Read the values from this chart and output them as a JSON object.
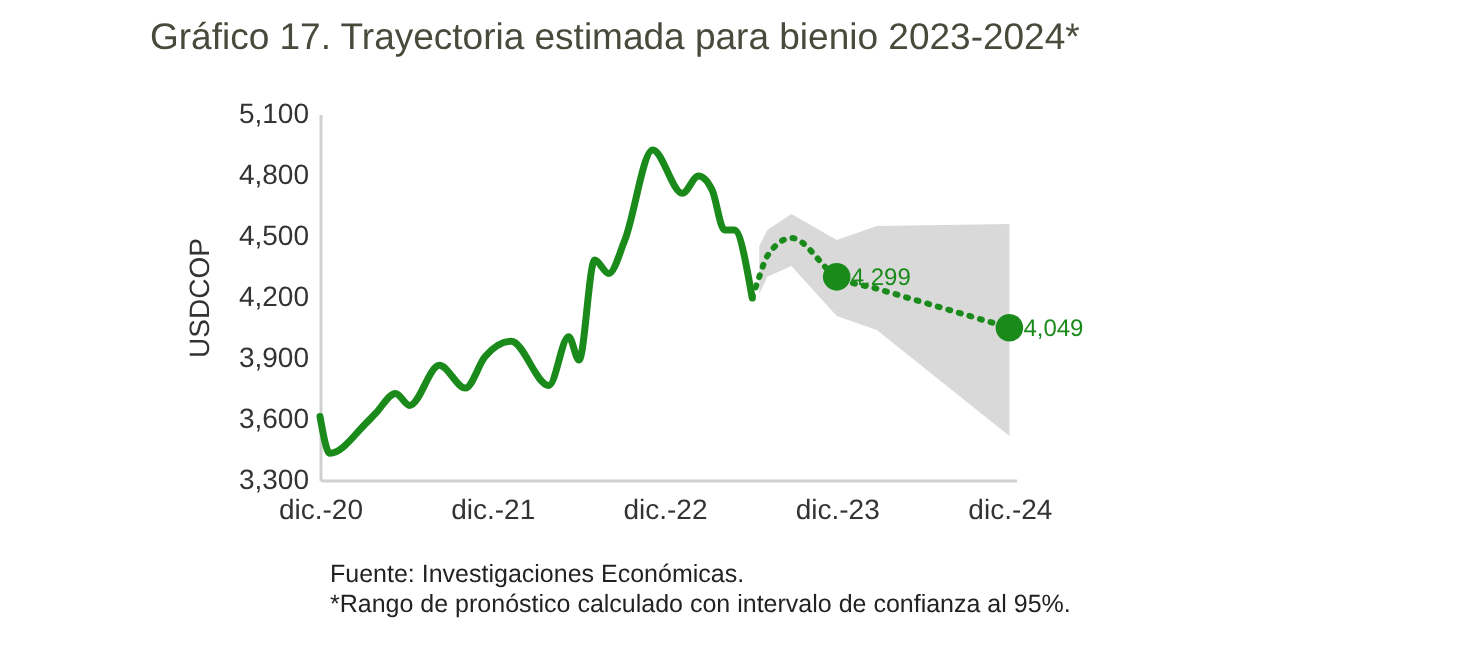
{
  "chart_data": {
    "type": "line",
    "title": "Gráfico 17. Trayectoria estimada para bienio 2023-2024*",
    "ylabel": "USDCOP",
    "xlim": [
      "2020-12-01",
      "2024-12-15"
    ],
    "xticks": [
      {
        "value": "2020-12-01",
        "label": "dic.-20"
      },
      {
        "value": "2021-12-01",
        "label": "dic.-21"
      },
      {
        "value": "2022-12-01",
        "label": "dic.-22"
      },
      {
        "value": "2023-12-01",
        "label": "dic.-23"
      },
      {
        "value": "2024-12-01",
        "label": "dic.-24"
      }
    ],
    "ylim": [
      3300,
      5100
    ],
    "yticks": [
      {
        "value": 3300,
        "label": "3,300"
      },
      {
        "value": 3600,
        "label": "3,600"
      },
      {
        "value": 3900,
        "label": "3,900"
      },
      {
        "value": 4200,
        "label": "4,200"
      },
      {
        "value": 4500,
        "label": "4,500"
      },
      {
        "value": 4800,
        "label": "4,800"
      },
      {
        "value": 5100,
        "label": "5,100"
      }
    ],
    "series": [
      {
        "type": "line",
        "color": "#1a8a1a",
        "line_style": "solid",
        "x": [
          "2020-12-01",
          "2020-12-22",
          "2021-03-08",
          "2021-03-29",
          "2021-05-10",
          "2021-06-09",
          "2021-08-11",
          "2021-10-05",
          "2021-11-16",
          "2022-01-10",
          "2022-03-31",
          "2022-05-12",
          "2022-06-03",
          "2022-07-06",
          "2022-08-05",
          "2022-09-08",
          "2022-11-06",
          "2023-01-08",
          "2023-02-11",
          "2023-03-12",
          "2023-04-07",
          "2023-04-28",
          "2023-06-05"
        ],
        "values": [
          3612,
          3431,
          3578,
          3628,
          3726,
          3667,
          3864,
          3752,
          3907,
          3982,
          3765,
          4005,
          3890,
          4382,
          4316,
          4480,
          4923,
          4710,
          4795,
          4726,
          4530,
          4530,
          4195
        ]
      },
      {
        "type": "line",
        "color": "#1a8a1a",
        "line_style": "dotted",
        "x": [
          "2023-06-05",
          "2023-06-20",
          "2023-07-07",
          "2023-08-27",
          "2023-12-01",
          "2024-02-24",
          "2024-12-01"
        ],
        "values": [
          4195,
          4300,
          4402,
          4490,
          4299,
          4241,
          4049
        ],
        "lower": [
          null,
          4215,
          4300,
          4352,
          4107,
          4038,
          3516
        ],
        "upper": [
          null,
          4451,
          4530,
          4608,
          4480,
          4549,
          4559
        ]
      },
      {
        "type": "scatter",
        "color": "#1a8a1a",
        "marker": "circle",
        "x": [
          "2023-12-01",
          "2024-12-01"
        ],
        "values": [
          4299,
          4049
        ],
        "value_labels": [
          "4,299",
          "4,049"
        ]
      }
    ],
    "annotations": [
      "Fuente: Investigaciones Económicas.",
      "*Rango de pronóstico calculado con intervalo de confianza al 95%."
    ]
  }
}
